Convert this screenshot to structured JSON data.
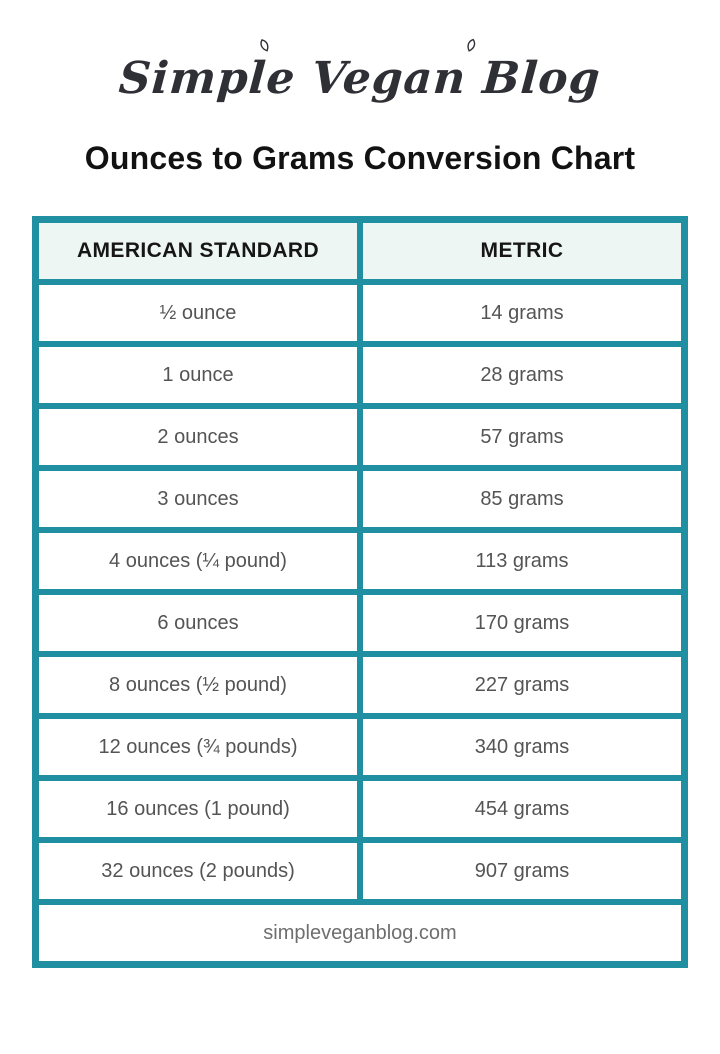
{
  "page": {
    "logo_text": "Simple Vegan Blog",
    "title": "Ounces to Grams Conversion Chart",
    "footer": "simpleveganblog.com"
  },
  "colors": {
    "teal": "#1f8fa1",
    "header_cell_bg": "#eef6f4",
    "cell_bg": "#ffffff",
    "title_color": "#121212",
    "cell_text": "#545454",
    "footer_text": "#6e6e6e",
    "logo_color": "#2f2f36"
  },
  "chart_data": {
    "type": "table",
    "title": "Ounces to Grams Conversion Chart",
    "columns": [
      "AMERICAN STANDARD",
      "METRIC"
    ],
    "rows": [
      [
        "½ ounce",
        "14 grams"
      ],
      [
        "1 ounce",
        "28 grams"
      ],
      [
        "2 ounces",
        "57 grams"
      ],
      [
        "3 ounces",
        "85 grams"
      ],
      [
        "4 ounces (¼ pound)",
        "113 grams"
      ],
      [
        "6 ounces",
        "170 grams"
      ],
      [
        "8 ounces (½ pound)",
        "227 grams"
      ],
      [
        "12 ounces (¾ pounds)",
        "340 grams"
      ],
      [
        "16 ounces (1 pound)",
        "454 grams"
      ],
      [
        "32 ounces (2 pounds)",
        "907 grams"
      ]
    ],
    "footer_row": "simpleveganblog.com",
    "ounces_numeric": [
      0.5,
      1,
      2,
      3,
      4,
      6,
      8,
      12,
      16,
      32
    ],
    "grams_numeric": [
      14,
      28,
      57,
      85,
      113,
      170,
      227,
      340,
      454,
      907
    ]
  }
}
